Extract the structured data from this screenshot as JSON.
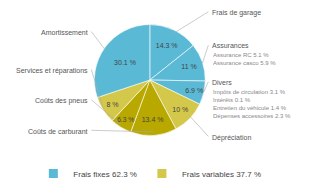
{
  "chart_data": {
    "type": "pie",
    "categories": [
      "Frais de garage",
      "Assurances",
      "Divers",
      "Dépréciation",
      "Coûts de carburant",
      "Coûts des pneus",
      "Services et réparations",
      "Amortissement"
    ],
    "values": [
      14.3,
      11.0,
      6.9,
      10.0,
      13.4,
      6.3,
      8.0,
      30.1
    ],
    "value_labels": [
      "14.3 %",
      "11 %",
      "6.9 %",
      "10 %",
      "13.4 %",
      "6.3 %",
      "8 %",
      "30.1 %"
    ],
    "colors": [
      "#5ab9d5",
      "#5ab9d5",
      "#5ab9d5",
      "#d4c84a",
      "#b8a800",
      "#b8a800",
      "#d4c84a",
      "#5ab9d5"
    ],
    "annotations": [
      {
        "category": "Assurances",
        "lines": [
          "Assurance RC 5.1 %",
          "Assurance casco 5.9 %"
        ]
      },
      {
        "category": "Divers",
        "lines": [
          "Impôts de circulation 3.1 %",
          "Intérêts 0.1 %",
          "Entretien du véhicule 1.4 %",
          "Dépenses accessoires 2.3 %"
        ]
      }
    ],
    "legend": "bottom",
    "legend_entries": [
      {
        "name": "Frais fixes 62.3 %",
        "color": "#5ab9d5"
      },
      {
        "name": "Frais variables 37.7 %",
        "color": "#d4c84a"
      }
    ]
  }
}
